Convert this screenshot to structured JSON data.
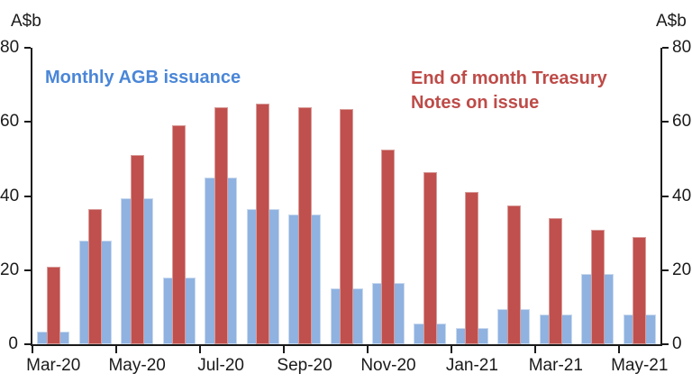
{
  "axis": {
    "unit_label": "A$b"
  },
  "legend": {
    "series1": "Monthly AGB issuance",
    "series2_line1": "End of month Treasury",
    "series2_line2": "Notes on issue"
  },
  "colors": {
    "agb_bar": "#8FB2E0",
    "treasury_bar": "#C0504D",
    "agb_label": "#4A86D8",
    "treasury_label": "#BE4B48",
    "axis": "#1a1a1a"
  },
  "chart_data": {
    "type": "bar",
    "title": "",
    "unit_label": "A$b",
    "categories": [
      "Mar-20",
      "Apr-20",
      "May-20",
      "Jun-20",
      "Jul-20",
      "Aug-20",
      "Sep-20",
      "Oct-20",
      "Nov-20",
      "Dec-20",
      "Jan-21",
      "Feb-21",
      "Mar-21",
      "Apr-21",
      "May-21"
    ],
    "x_tick_labels": [
      "Mar-20",
      "May-20",
      "Jul-20",
      "Sep-20",
      "Nov-20",
      "Jan-21",
      "Mar-21",
      "May-21"
    ],
    "x_label_every": 2,
    "series": [
      {
        "name": "Monthly AGB issuance",
        "color": "#8FB2E0",
        "values": [
          3.5,
          28,
          39.5,
          18,
          45,
          36.5,
          35,
          15,
          16.5,
          5.5,
          4.5,
          9.5,
          8,
          19,
          8
        ]
      },
      {
        "name": "End of month Treasury Notes on issue",
        "color": "#C0504D",
        "values": [
          21,
          36.5,
          51,
          59,
          64,
          65,
          64,
          63.5,
          52.5,
          46.5,
          41,
          37.5,
          34,
          31,
          29
        ]
      }
    ],
    "xlabel": "",
    "ylabel": "A$b",
    "ylim": [
      0,
      80
    ],
    "y_ticks": [
      0,
      20,
      40,
      60,
      80
    ],
    "grid": false,
    "legend_position": "inside-top",
    "axes": "left-and-right"
  }
}
